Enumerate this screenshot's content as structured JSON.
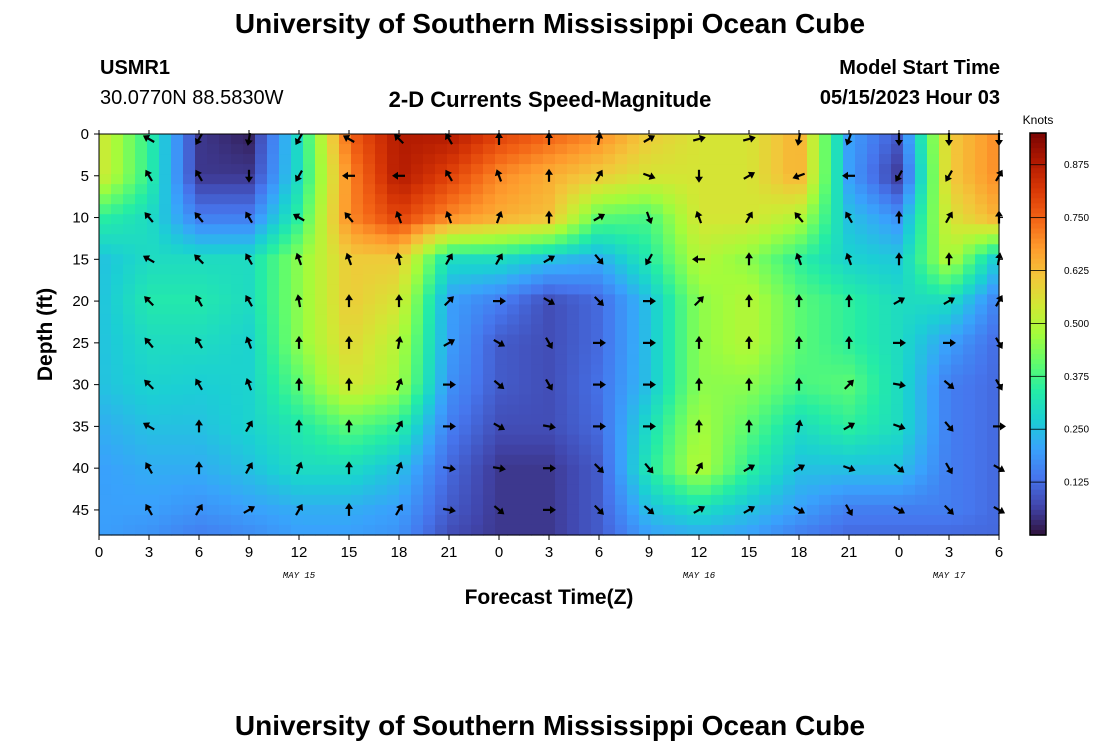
{
  "header": {
    "title": "University of Southern Mississippi Ocean Cube",
    "station": "USMR1",
    "coords": "30.0770N  88.5830W",
    "subtitle": "2-D Currents Speed-Magnitude",
    "model_label": "Model Start Time",
    "model_time": "05/15/2023 Hour 03"
  },
  "footer": {
    "title": "University of Southern Mississippi Ocean Cube"
  },
  "colors": {
    "scale": [
      "#30123b",
      "#4145ab",
      "#4675ed",
      "#39a2fc",
      "#1bcfd4",
      "#24eca6",
      "#61fc6c",
      "#a4fc3b",
      "#d1e834",
      "#f3c63a",
      "#fe9b2d",
      "#f36315",
      "#d93806",
      "#b11901",
      "#7a0403"
    ]
  },
  "chart_data": {
    "type": "heatmap",
    "xlabel": "Forecast Time(Z)",
    "ylabel": "Depth (ft)",
    "x_ticks": [
      "0",
      "3",
      "6",
      "9",
      "12",
      "15",
      "18",
      "21",
      "0",
      "3",
      "6",
      "9",
      "12",
      "15",
      "18",
      "21",
      "0",
      "3",
      "6"
    ],
    "x_range_hours": [
      0,
      54
    ],
    "date_labels": [
      {
        "label": "MAY 15",
        "hour": 12
      },
      {
        "label": "MAY 16",
        "hour": 36
      },
      {
        "label": "MAY 17",
        "hour": 51
      }
    ],
    "y_ticks": [
      "0",
      "5",
      "10",
      "15",
      "20",
      "25",
      "30",
      "35",
      "40",
      "45"
    ],
    "ylim": [
      0,
      48
    ],
    "y_inverted": true,
    "colorbar": {
      "title": "Knots",
      "range": [
        0,
        0.95
      ],
      "ticks": [
        "0.125",
        "0.250",
        "0.375",
        "0.500",
        "0.625",
        "0.750",
        "0.875"
      ]
    },
    "grid_hours": [
      0,
      3,
      6,
      9,
      12,
      15,
      18,
      21,
      24,
      27,
      30,
      33,
      36,
      39,
      42,
      45,
      48,
      51,
      54
    ],
    "grid_depths": [
      0,
      5,
      10,
      15,
      20,
      25,
      30,
      35,
      40,
      45,
      48
    ],
    "speed_knots": [
      [
        0.55,
        0.35,
        0.05,
        0.02,
        0.3,
        0.75,
        0.88,
        0.88,
        0.8,
        0.75,
        0.7,
        0.6,
        0.55,
        0.55,
        0.65,
        0.2,
        0.1,
        0.6,
        0.7
      ],
      [
        0.55,
        0.35,
        0.05,
        0.05,
        0.3,
        0.7,
        0.88,
        0.8,
        0.7,
        0.65,
        0.6,
        0.55,
        0.55,
        0.55,
        0.65,
        0.2,
        0.05,
        0.6,
        0.7
      ],
      [
        0.35,
        0.3,
        0.15,
        0.15,
        0.35,
        0.7,
        0.8,
        0.7,
        0.65,
        0.62,
        0.4,
        0.38,
        0.55,
        0.55,
        0.5,
        0.25,
        0.18,
        0.55,
        0.65
      ],
      [
        0.25,
        0.3,
        0.3,
        0.3,
        0.45,
        0.6,
        0.6,
        0.3,
        0.3,
        0.25,
        0.22,
        0.33,
        0.5,
        0.45,
        0.35,
        0.28,
        0.26,
        0.5,
        0.25
      ],
      [
        0.25,
        0.33,
        0.33,
        0.3,
        0.45,
        0.6,
        0.55,
        0.2,
        0.15,
        0.08,
        0.12,
        0.25,
        0.45,
        0.5,
        0.4,
        0.35,
        0.3,
        0.3,
        0.15
      ],
      [
        0.25,
        0.3,
        0.3,
        0.28,
        0.45,
        0.58,
        0.5,
        0.2,
        0.1,
        0.08,
        0.12,
        0.25,
        0.45,
        0.5,
        0.4,
        0.35,
        0.3,
        0.2,
        0.12
      ],
      [
        0.25,
        0.28,
        0.27,
        0.28,
        0.4,
        0.55,
        0.48,
        0.18,
        0.1,
        0.08,
        0.13,
        0.25,
        0.45,
        0.45,
        0.38,
        0.4,
        0.3,
        0.15,
        0.12
      ],
      [
        0.22,
        0.25,
        0.25,
        0.28,
        0.33,
        0.4,
        0.35,
        0.15,
        0.08,
        0.08,
        0.12,
        0.3,
        0.48,
        0.4,
        0.3,
        0.35,
        0.3,
        0.15,
        0.12
      ],
      [
        0.2,
        0.22,
        0.22,
        0.25,
        0.3,
        0.3,
        0.25,
        0.12,
        0.05,
        0.05,
        0.1,
        0.33,
        0.5,
        0.35,
        0.25,
        0.25,
        0.25,
        0.15,
        0.12
      ],
      [
        0.2,
        0.2,
        0.18,
        0.2,
        0.22,
        0.22,
        0.2,
        0.1,
        0.05,
        0.05,
        0.1,
        0.25,
        0.3,
        0.25,
        0.2,
        0.15,
        0.15,
        0.15,
        0.12
      ],
      [
        0.2,
        0.18,
        0.15,
        0.17,
        0.2,
        0.2,
        0.18,
        0.08,
        0.05,
        0.05,
        0.1,
        0.2,
        0.22,
        0.2,
        0.15,
        0.12,
        0.12,
        0.12,
        0.12
      ]
    ],
    "vectors": {
      "depths": [
        0,
        5,
        10,
        15,
        20,
        25,
        30,
        35,
        40,
        45
      ],
      "hours": [
        3,
        6,
        9,
        12,
        15,
        18,
        21,
        24,
        27,
        30,
        33,
        36,
        39,
        42,
        45,
        48,
        51,
        54
      ],
      "direction_deg": [
        [
          300,
          210,
          190,
          210,
          300,
          315,
          330,
          0,
          0,
          10,
          60,
          75,
          75,
          190,
          200,
          180,
          180,
          180
        ],
        [
          330,
          330,
          180,
          210,
          270,
          270,
          330,
          340,
          0,
          30,
          110,
          180,
          60,
          250,
          270,
          210,
          210,
          30
        ],
        [
          320,
          320,
          330,
          300,
          320,
          340,
          340,
          20,
          0,
          60,
          160,
          340,
          30,
          320,
          330,
          0,
          30,
          0
        ],
        [
          300,
          315,
          330,
          340,
          340,
          350,
          30,
          30,
          60,
          140,
          210,
          270,
          0,
          340,
          340,
          0,
          0,
          10
        ],
        [
          315,
          330,
          330,
          350,
          0,
          0,
          45,
          90,
          120,
          135,
          90,
          45,
          0,
          0,
          0,
          60,
          60,
          30
        ],
        [
          320,
          330,
          340,
          0,
          0,
          10,
          60,
          120,
          150,
          90,
          90,
          0,
          0,
          0,
          0,
          90,
          90,
          150
        ],
        [
          315,
          330,
          340,
          0,
          0,
          20,
          90,
          130,
          150,
          90,
          90,
          0,
          0,
          0,
          45,
          100,
          130,
          150
        ],
        [
          300,
          0,
          30,
          0,
          0,
          30,
          90,
          120,
          100,
          90,
          90,
          0,
          0,
          10,
          60,
          110,
          140,
          90
        ],
        [
          330,
          0,
          30,
          20,
          0,
          20,
          100,
          100,
          90,
          135,
          140,
          30,
          60,
          60,
          110,
          130,
          150,
          120
        ],
        [
          330,
          30,
          60,
          30,
          0,
          30,
          100,
          130,
          90,
          135,
          130,
          60,
          60,
          120,
          150,
          120,
          135,
          120
        ]
      ]
    }
  }
}
